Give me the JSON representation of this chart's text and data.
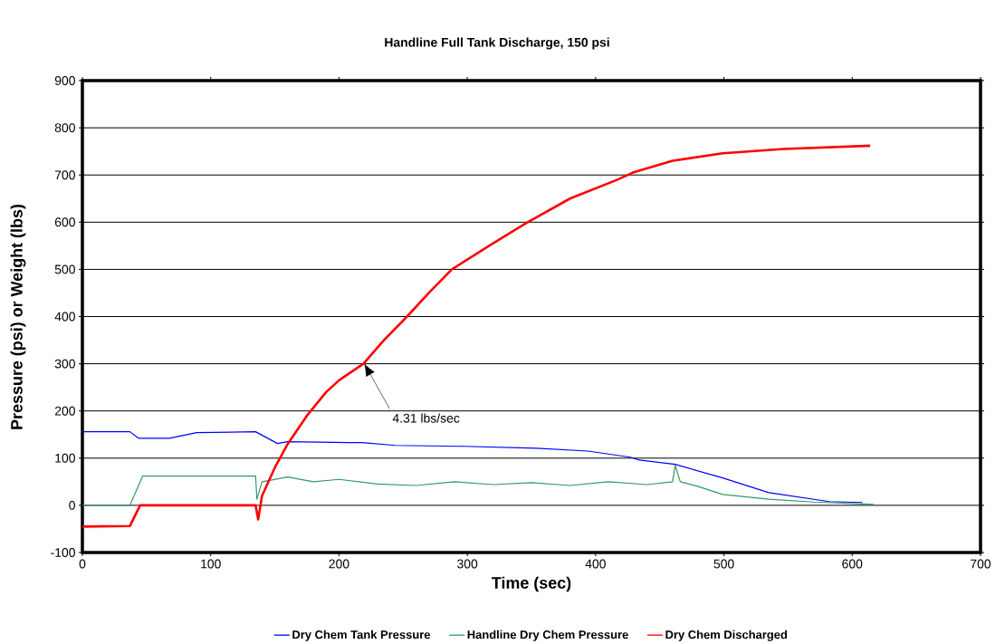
{
  "chart_data": {
    "type": "line",
    "title": "Handline Full Tank Discharge, 150 psi",
    "xlabel": "Time (sec)",
    "ylabel": "Pressure (psi) or Weight (lbs)",
    "xlim": [
      0,
      700
    ],
    "ylim": [
      -100,
      900
    ],
    "xticks": [
      0,
      100,
      200,
      300,
      400,
      500,
      600,
      700
    ],
    "yticks": [
      -100,
      0,
      100,
      200,
      300,
      400,
      500,
      600,
      700,
      800,
      900
    ],
    "grid": "y",
    "legend": "bottom",
    "marker": "none",
    "line_style": "solid",
    "annotations": [
      "4.31 lbs/sec"
    ],
    "series": [
      {
        "name": "Dry Chem Tank Pressure",
        "color": "#0000ff",
        "x": [
          0,
          37,
          44,
          68,
          89,
          135,
          152,
          160,
          208,
          218,
          244,
          297,
          354,
          394,
          427,
          434,
          462,
          499,
          535,
          582,
          608
        ],
        "values": [
          156,
          156,
          142,
          142,
          154,
          156,
          131,
          135,
          133,
          133,
          127,
          125,
          121,
          115,
          102,
          96,
          87,
          58,
          27,
          8,
          6
        ]
      },
      {
        "name": "Handline Dry Chem Pressure",
        "color": "#339966",
        "x": [
          0,
          37,
          47,
          135,
          136,
          140,
          150,
          160,
          180,
          200,
          230,
          260,
          290,
          320,
          350,
          380,
          410,
          440,
          460,
          462,
          466,
          480,
          499,
          535,
          570,
          617
        ],
        "values": [
          0,
          0,
          62,
          62,
          13,
          50,
          55,
          60,
          50,
          55,
          45,
          42,
          50,
          44,
          48,
          42,
          50,
          44,
          50,
          85,
          50,
          40,
          23,
          13,
          7,
          2
        ]
      },
      {
        "name": "Dry Chem Discharged",
        "color": "#ff0000",
        "x": [
          0,
          37,
          45,
          135,
          137,
          140,
          150,
          160,
          175,
          190,
          200,
          219,
          235,
          253,
          270,
          288,
          317,
          347,
          380,
          417,
          429,
          460,
          499,
          546,
          614
        ],
        "values": [
          -45,
          -44,
          0,
          0,
          -30,
          20,
          80,
          130,
          190,
          240,
          265,
          300,
          350,
          400,
          450,
          500,
          550,
          600,
          650,
          690,
          705,
          730,
          746,
          755,
          762
        ]
      }
    ]
  }
}
